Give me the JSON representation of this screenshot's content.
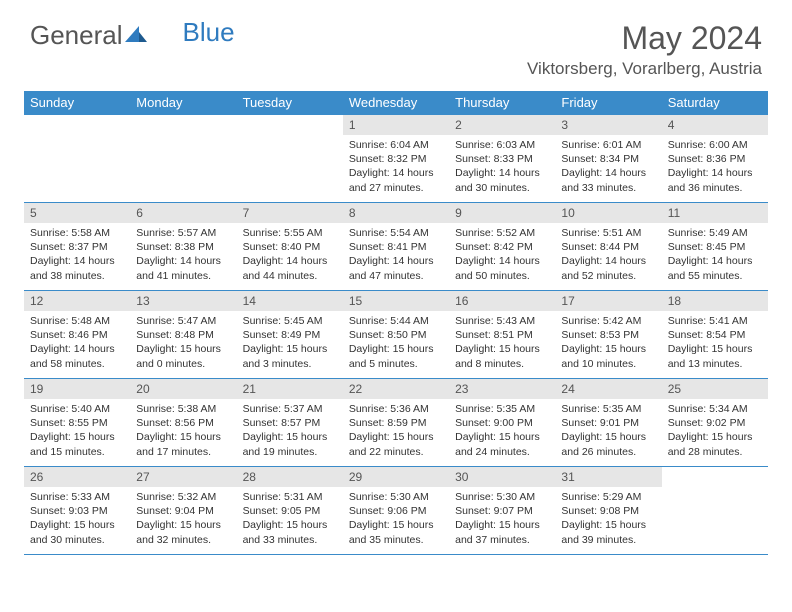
{
  "logo": {
    "part1": "General",
    "part2": "Blue"
  },
  "title": "May 2024",
  "location": "Viktorsberg, Vorarlberg, Austria",
  "colors": {
    "header_bg": "#3a8bc9",
    "header_text": "#ffffff",
    "daynum_bg": "#e6e6e6",
    "text": "#555555",
    "detail_text": "#333333",
    "border": "#3a8bc9",
    "logo_blue": "#2f7bbf"
  },
  "day_headers": [
    "Sunday",
    "Monday",
    "Tuesday",
    "Wednesday",
    "Thursday",
    "Friday",
    "Saturday"
  ],
  "weeks": [
    [
      null,
      null,
      null,
      {
        "d": "1",
        "sr": "6:04 AM",
        "ss": "8:32 PM",
        "dl": "14 hours and 27 minutes."
      },
      {
        "d": "2",
        "sr": "6:03 AM",
        "ss": "8:33 PM",
        "dl": "14 hours and 30 minutes."
      },
      {
        "d": "3",
        "sr": "6:01 AM",
        "ss": "8:34 PM",
        "dl": "14 hours and 33 minutes."
      },
      {
        "d": "4",
        "sr": "6:00 AM",
        "ss": "8:36 PM",
        "dl": "14 hours and 36 minutes."
      }
    ],
    [
      {
        "d": "5",
        "sr": "5:58 AM",
        "ss": "8:37 PM",
        "dl": "14 hours and 38 minutes."
      },
      {
        "d": "6",
        "sr": "5:57 AM",
        "ss": "8:38 PM",
        "dl": "14 hours and 41 minutes."
      },
      {
        "d": "7",
        "sr": "5:55 AM",
        "ss": "8:40 PM",
        "dl": "14 hours and 44 minutes."
      },
      {
        "d": "8",
        "sr": "5:54 AM",
        "ss": "8:41 PM",
        "dl": "14 hours and 47 minutes."
      },
      {
        "d": "9",
        "sr": "5:52 AM",
        "ss": "8:42 PM",
        "dl": "14 hours and 50 minutes."
      },
      {
        "d": "10",
        "sr": "5:51 AM",
        "ss": "8:44 PM",
        "dl": "14 hours and 52 minutes."
      },
      {
        "d": "11",
        "sr": "5:49 AM",
        "ss": "8:45 PM",
        "dl": "14 hours and 55 minutes."
      }
    ],
    [
      {
        "d": "12",
        "sr": "5:48 AM",
        "ss": "8:46 PM",
        "dl": "14 hours and 58 minutes."
      },
      {
        "d": "13",
        "sr": "5:47 AM",
        "ss": "8:48 PM",
        "dl": "15 hours and 0 minutes."
      },
      {
        "d": "14",
        "sr": "5:45 AM",
        "ss": "8:49 PM",
        "dl": "15 hours and 3 minutes."
      },
      {
        "d": "15",
        "sr": "5:44 AM",
        "ss": "8:50 PM",
        "dl": "15 hours and 5 minutes."
      },
      {
        "d": "16",
        "sr": "5:43 AM",
        "ss": "8:51 PM",
        "dl": "15 hours and 8 minutes."
      },
      {
        "d": "17",
        "sr": "5:42 AM",
        "ss": "8:53 PM",
        "dl": "15 hours and 10 minutes."
      },
      {
        "d": "18",
        "sr": "5:41 AM",
        "ss": "8:54 PM",
        "dl": "15 hours and 13 minutes."
      }
    ],
    [
      {
        "d": "19",
        "sr": "5:40 AM",
        "ss": "8:55 PM",
        "dl": "15 hours and 15 minutes."
      },
      {
        "d": "20",
        "sr": "5:38 AM",
        "ss": "8:56 PM",
        "dl": "15 hours and 17 minutes."
      },
      {
        "d": "21",
        "sr": "5:37 AM",
        "ss": "8:57 PM",
        "dl": "15 hours and 19 minutes."
      },
      {
        "d": "22",
        "sr": "5:36 AM",
        "ss": "8:59 PM",
        "dl": "15 hours and 22 minutes."
      },
      {
        "d": "23",
        "sr": "5:35 AM",
        "ss": "9:00 PM",
        "dl": "15 hours and 24 minutes."
      },
      {
        "d": "24",
        "sr": "5:35 AM",
        "ss": "9:01 PM",
        "dl": "15 hours and 26 minutes."
      },
      {
        "d": "25",
        "sr": "5:34 AM",
        "ss": "9:02 PM",
        "dl": "15 hours and 28 minutes."
      }
    ],
    [
      {
        "d": "26",
        "sr": "5:33 AM",
        "ss": "9:03 PM",
        "dl": "15 hours and 30 minutes."
      },
      {
        "d": "27",
        "sr": "5:32 AM",
        "ss": "9:04 PM",
        "dl": "15 hours and 32 minutes."
      },
      {
        "d": "28",
        "sr": "5:31 AM",
        "ss": "9:05 PM",
        "dl": "15 hours and 33 minutes."
      },
      {
        "d": "29",
        "sr": "5:30 AM",
        "ss": "9:06 PM",
        "dl": "15 hours and 35 minutes."
      },
      {
        "d": "30",
        "sr": "5:30 AM",
        "ss": "9:07 PM",
        "dl": "15 hours and 37 minutes."
      },
      {
        "d": "31",
        "sr": "5:29 AM",
        "ss": "9:08 PM",
        "dl": "15 hours and 39 minutes."
      },
      null
    ]
  ],
  "labels": {
    "sunrise": "Sunrise:",
    "sunset": "Sunset:",
    "daylight": "Daylight:"
  }
}
